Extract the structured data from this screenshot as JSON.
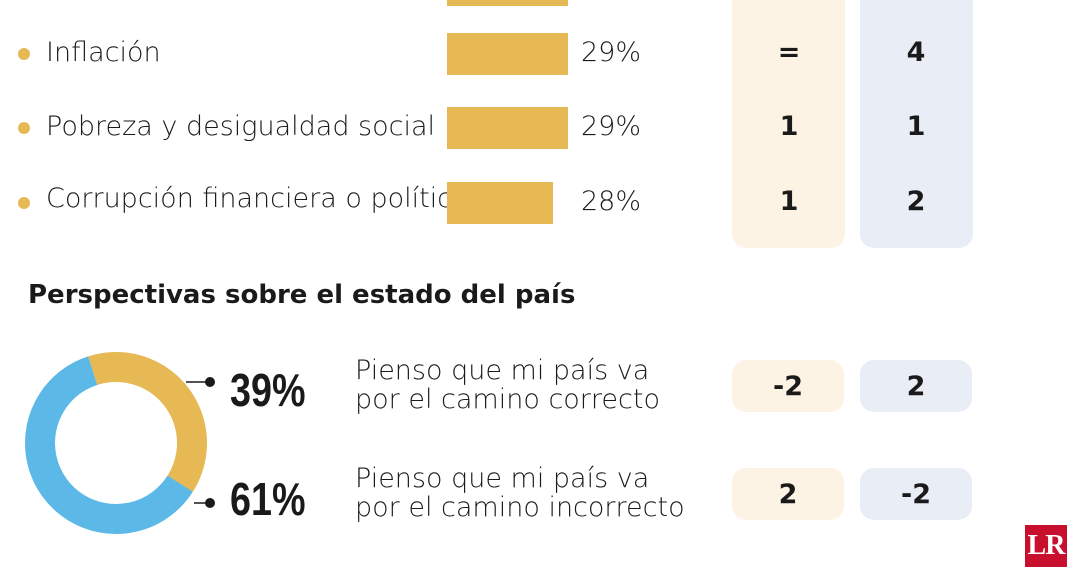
{
  "chart_data": [
    {
      "type": "bar",
      "categories": [
        "Inflación",
        "Pobreza y desigualdad social",
        "Corrupción financiera o política"
      ],
      "values": [
        29,
        29,
        28
      ],
      "value_labels": [
        "29%",
        "29%",
        "28%"
      ],
      "rank_change_a": [
        "=",
        "1",
        "1"
      ],
      "rank_change_b": [
        "4",
        "1",
        "2"
      ]
    },
    {
      "type": "pie",
      "title": "Perspectivas sobre el estado del país",
      "categories": [
        "Pienso que mi país va por el camino correcto",
        "Pienso que mi país va por el camino incorrecto"
      ],
      "values": [
        39,
        61
      ],
      "value_labels": [
        "39%",
        "61%"
      ],
      "colors": [
        "#e6b955",
        "#5cb8e6"
      ],
      "change_a": [
        "-2",
        "2"
      ],
      "change_b": [
        "2",
        "-2"
      ]
    }
  ],
  "statements": [
    {
      "line1": "Pienso que mi país va",
      "line2": "por el camino correcto"
    },
    {
      "line1": "Pienso que mi país va",
      "line2": "por el camino incorrecto"
    }
  ],
  "logo_text": "LR",
  "colors": {
    "bar": "#e6b955",
    "donut_blue": "#5cb8e6",
    "peach": "#fdf3e4",
    "blue_col": "#e8edf6",
    "logo": "#c8102e"
  }
}
